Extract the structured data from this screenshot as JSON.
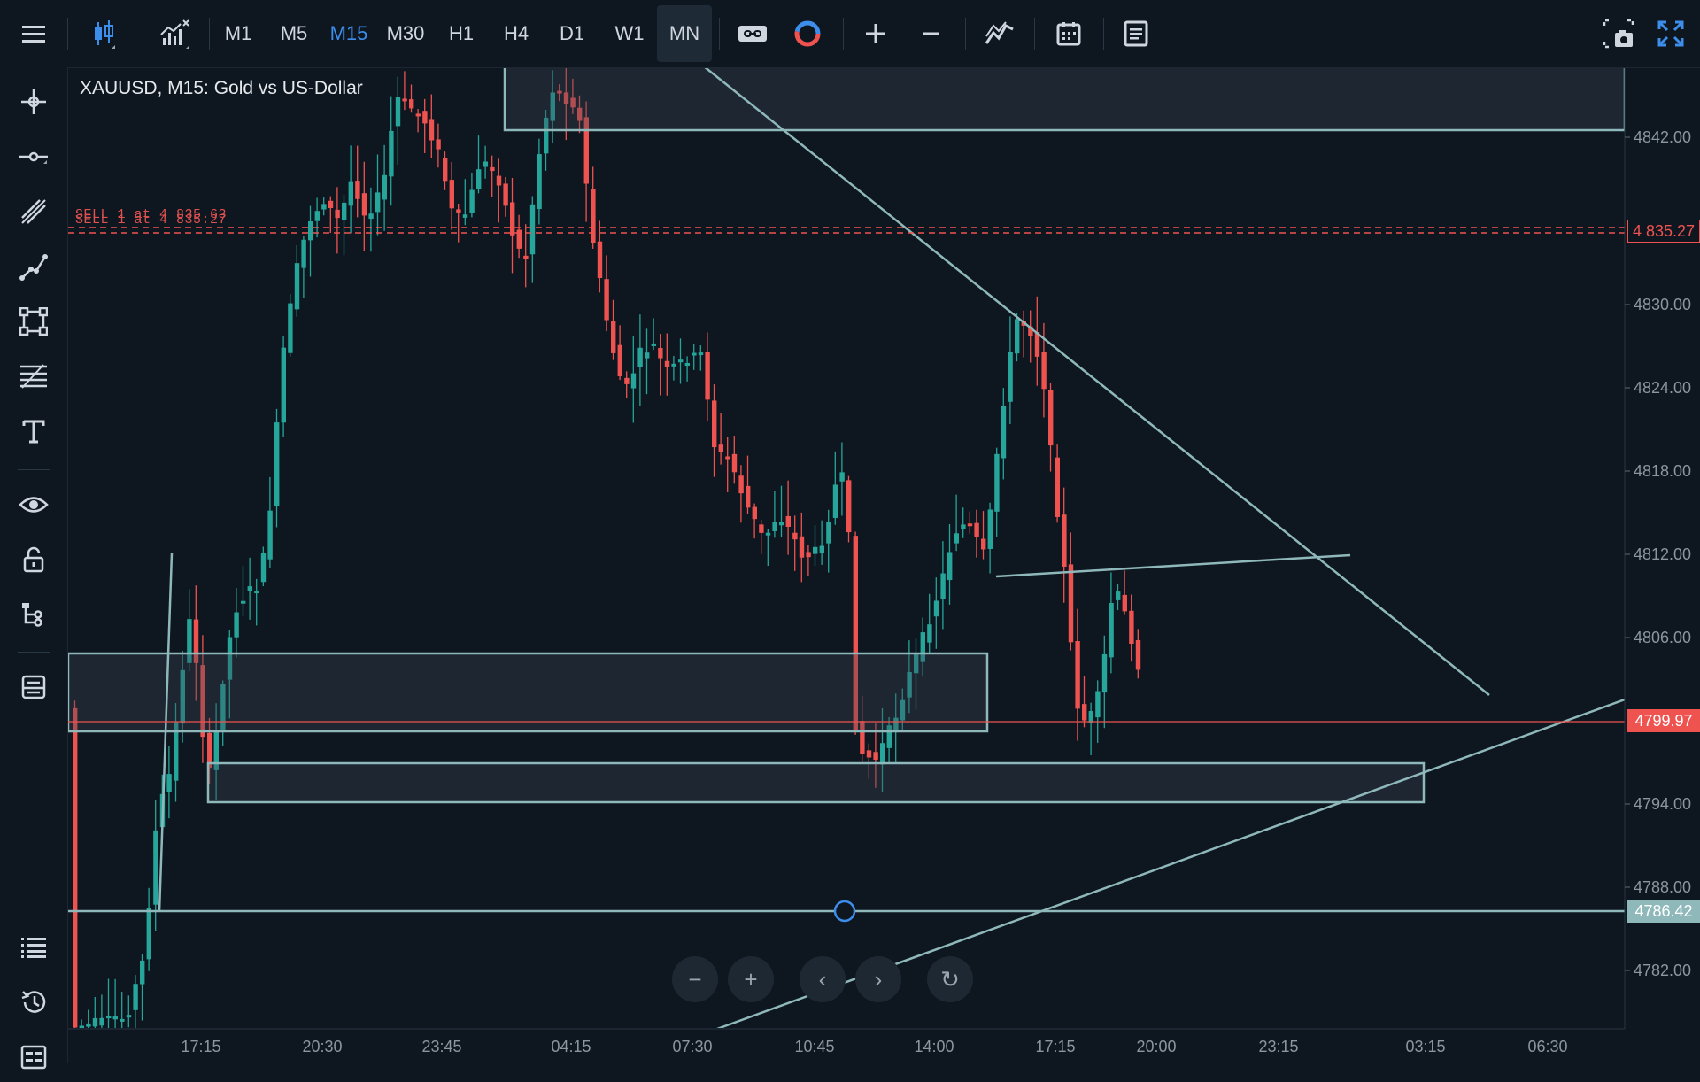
{
  "toolbar": {
    "timeframes": [
      {
        "label": "M1",
        "state": "normal"
      },
      {
        "label": "M5",
        "state": "normal"
      },
      {
        "label": "M15",
        "state": "active"
      },
      {
        "label": "M30",
        "state": "normal"
      },
      {
        "label": "H1",
        "state": "normal"
      },
      {
        "label": "H4",
        "state": "normal"
      },
      {
        "label": "D1",
        "state": "normal"
      },
      {
        "label": "W1",
        "state": "normal"
      },
      {
        "label": "MN",
        "state": "selected"
      }
    ],
    "icons": [
      "menu-icon",
      "candlestick-icon",
      "indicators-icon",
      "chart-type-icon",
      "compare-icon",
      "add-icon",
      "remove-icon",
      "trend-icon",
      "calendar-icon",
      "notes-icon",
      "screenshot-icon",
      "fullscreen-icon"
    ]
  },
  "sidebar": {
    "icons": [
      "crosshair-icon",
      "horizontal-line-icon",
      "trend-lines-icon",
      "polyline-icon",
      "shapes-icon",
      "fibonacci-icon",
      "text-icon",
      "eye-icon",
      "lock-icon",
      "object-tree-icon",
      "layers-icon",
      "watchlist-icon",
      "history-icon",
      "calculator-icon"
    ]
  },
  "chart": {
    "symbol_title": "XAUUSD, M15: Gold vs US-Dollar",
    "orders": [
      {
        "label": "SELL 1 at 4 835.63"
      },
      {
        "label": "SELL 1 at 4 835.27"
      }
    ],
    "y_axis_labels": [
      "4842.00",
      "4830.00",
      "4824.00",
      "4818.00",
      "4812.00",
      "4806.00",
      "4794.00",
      "4788.00",
      "4782.00"
    ],
    "x_axis_labels": [
      "17:15",
      "20:30",
      "23:45",
      "04:15",
      "07:30",
      "10:45",
      "14:00",
      "17:15",
      "20:00",
      "23:15",
      "03:15",
      "06:30"
    ],
    "price_tags": {
      "sell_price": "4 835.27",
      "bid_price": "4799.97",
      "hline_price": "4786.42"
    },
    "colors": {
      "up": "#26a69a",
      "down": "#ef5350",
      "drawing": "#8fb8bb"
    }
  },
  "nav": {
    "zoom_out": "−",
    "zoom_in": "+",
    "scroll_left": "‹",
    "scroll_right": "›",
    "reset": "↻"
  }
}
